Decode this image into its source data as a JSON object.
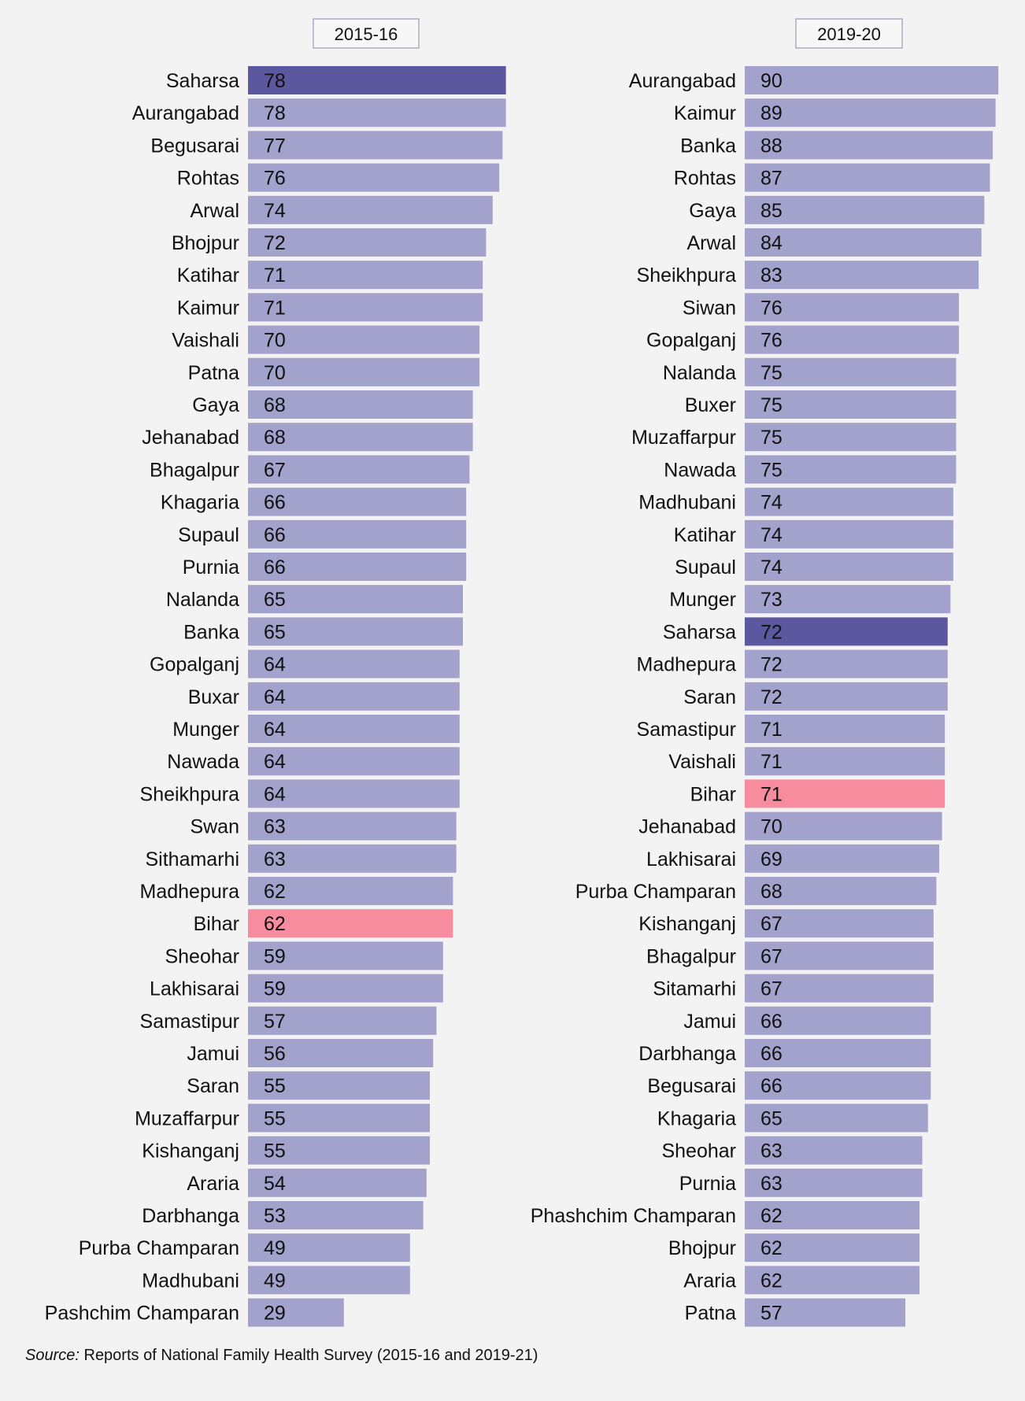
{
  "colors": {
    "bar": "#a3a2cc",
    "highlight": "#5b58a0",
    "state": "#f78c9f",
    "background": "#f3f3f3"
  },
  "source": {
    "prefix": "Source:",
    "text": " Reports of National Family Health Survey (2015-16 and 2019-21)"
  },
  "chart_data": [
    {
      "type": "bar",
      "orientation": "horizontal",
      "title": "2015-16",
      "highlight": "Saharsa",
      "state": "Bihar",
      "xlim": [
        0,
        90
      ],
      "categories": [
        "Saharsa",
        "Aurangabad",
        "Begusarai",
        "Rohtas",
        "Arwal",
        "Bhojpur",
        "Katihar",
        "Kaimur",
        "Vaishali",
        "Patna",
        "Gaya",
        "Jehanabad",
        "Bhagalpur",
        "Khagaria",
        "Supaul",
        "Purnia",
        "Nalanda",
        "Banka",
        "Gopalganj",
        "Buxar",
        "Munger",
        "Nawada",
        "Sheikhpura",
        "Swan",
        "Sithamarhi",
        "Madhepura",
        "Bihar",
        "Sheohar",
        "Lakhisarai",
        "Samastipur",
        "Jamui",
        "Saran",
        "Muzaffarpur",
        "Kishanganj",
        "Araria",
        "Darbhanga",
        "Purba Champaran",
        "Madhubani",
        "Pashchim Champaran"
      ],
      "values": [
        78,
        78,
        77,
        76,
        74,
        72,
        71,
        71,
        70,
        70,
        68,
        68,
        67,
        66,
        66,
        66,
        65,
        65,
        64,
        64,
        64,
        64,
        64,
        63,
        63,
        62,
        62,
        59,
        59,
        57,
        56,
        55,
        55,
        55,
        54,
        53,
        49,
        49,
        29
      ]
    },
    {
      "type": "bar",
      "orientation": "horizontal",
      "title": "2019-20",
      "highlight": "Saharsa",
      "state": "Bihar",
      "xlim": [
        0,
        90
      ],
      "categories": [
        "Aurangabad",
        "Kaimur",
        "Banka",
        "Rohtas",
        "Gaya",
        "Arwal",
        "Sheikhpura",
        "Siwan",
        "Gopalganj",
        "Nalanda",
        "Buxer",
        "Muzaffarpur",
        "Nawada",
        "Madhubani",
        "Katihar",
        "Supaul",
        "Munger",
        "Saharsa",
        "Madhepura",
        "Saran",
        "Samastipur",
        "Vaishali",
        "Bihar",
        "Jehanabad",
        "Lakhisarai",
        "Purba Champaran",
        "Kishanganj",
        "Bhagalpur",
        "Sitamarhi",
        "Jamui",
        "Darbhanga",
        "Begusarai",
        "Khagaria",
        "Sheohar",
        "Purnia",
        "Phashchim Champaran",
        "Bhojpur",
        "Araria",
        "Patna"
      ],
      "values": [
        90,
        89,
        88,
        87,
        85,
        84,
        83,
        76,
        76,
        75,
        75,
        75,
        75,
        74,
        74,
        74,
        73,
        72,
        72,
        72,
        71,
        71,
        71,
        70,
        69,
        68,
        67,
        67,
        67,
        66,
        66,
        66,
        65,
        63,
        63,
        62,
        62,
        62,
        57
      ]
    }
  ]
}
